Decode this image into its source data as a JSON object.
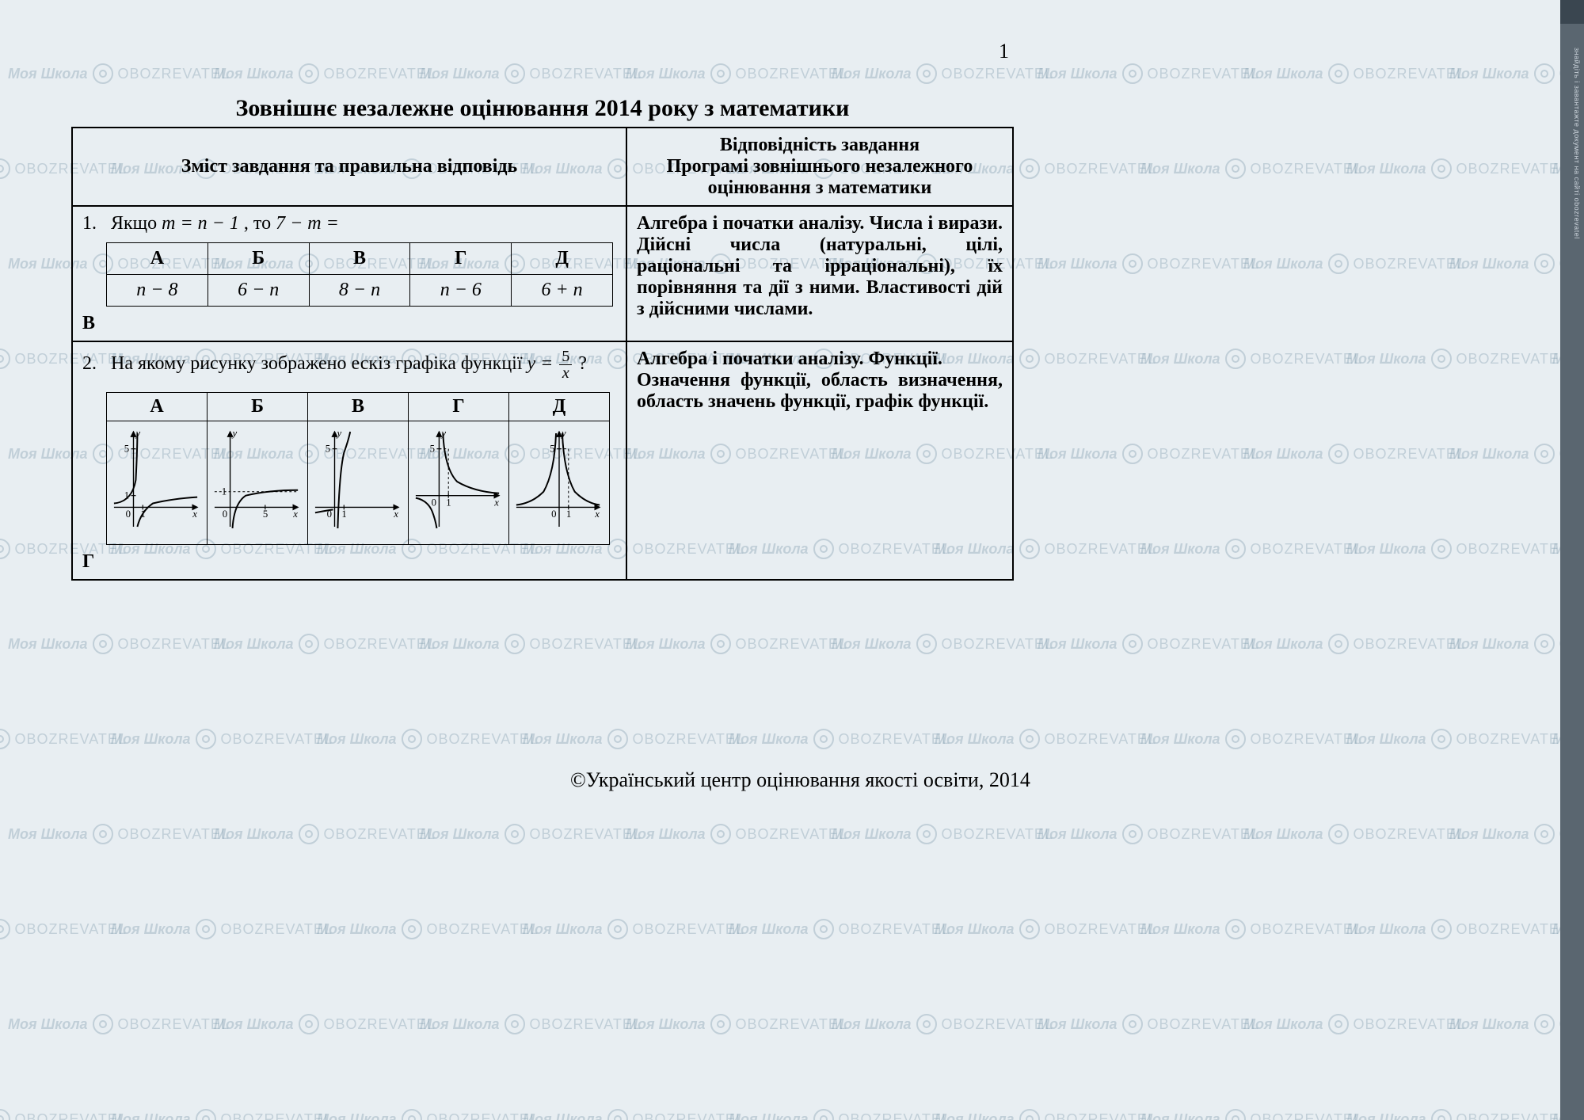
{
  "page_number": "1",
  "title": "Зовнішнє незалежне оцінювання 2014 року з математики",
  "header": {
    "left": "Зміст завдання та правильна відповідь",
    "right_line1": "Відповідність завдання",
    "right_line2": "Програмі зовнішнього незалежного",
    "right_line3": "оцінювання з математики"
  },
  "watermark": {
    "text1": "Моя Школа",
    "text2": "OBOZREVATEL",
    "color": "rgba(120,150,170,0.35)"
  },
  "q1": {
    "num": "1.",
    "prompt_prefix": "Якщо ",
    "prompt_eq": "m = n − 1",
    "prompt_mid": ",  то  ",
    "prompt_expr": "7 − m =",
    "headers": [
      "А",
      "Б",
      "В",
      "Г",
      "Д"
    ],
    "options": [
      "n − 8",
      "6 − n",
      "8 − n",
      "n − 6",
      "6 + n"
    ],
    "answer": "В",
    "desc": "Алгебра і початки аналізу. Числа і вирази. Дійсні числа (натуральні, цілі, раціональні та ірраціональні), їх порівняння та дії з ними. Властивості дій з дійсними числами."
  },
  "q2": {
    "num": "2.",
    "prompt": "На якому рисунку зображено ескіз графіка функції ",
    "func_lhs": "y =",
    "frac_num": "5",
    "frac_den": "x",
    "prompt_end": " ?",
    "headers": [
      "А",
      "Б",
      "В",
      "Г",
      "Д"
    ],
    "answer": "Г",
    "desc_line1": "Алгебра і початки аналізу. Функції.",
    "desc_line2": "Означення функції, область визначення, область значень функції, графік функції.",
    "graph_labels": {
      "y": "y",
      "x": "x",
      "zero": "0",
      "one": "1",
      "five": "5"
    },
    "graph_style": {
      "axis_color": "#000000",
      "curve_color": "#000000",
      "axis_width": 1.4,
      "curve_width": 2,
      "bg": "#ffffff"
    }
  },
  "copyright": "©Український центр оцінювання якості освіти, 2014",
  "sidebar_text": "знайдіть і завантажте документ на сайті obozrevatel"
}
